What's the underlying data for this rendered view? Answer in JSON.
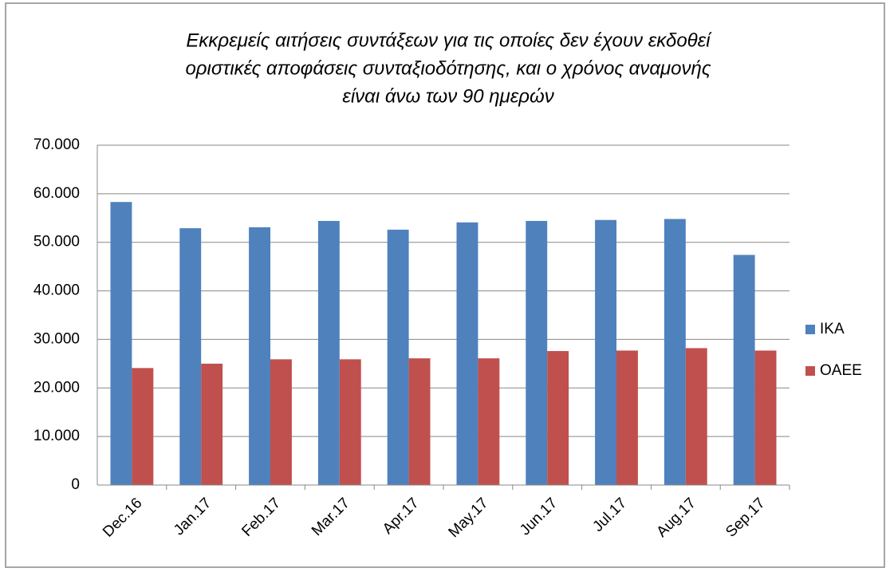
{
  "chart_data": {
    "type": "bar",
    "title": [
      "Εκκρεμείς αιτήσεις συντάξεων  για τις οποίες δεν έχουν εκδοθεί",
      "οριστικές αποφάσεις συνταξιοδότησης, και ο χρόνος αναμονής",
      "είναι άνω των 90 ημερών"
    ],
    "categories": [
      "Dec.16",
      "Jan.17",
      "Feb.17",
      "Mar.17",
      "Apr.17",
      "May.17",
      "Jun.17",
      "Jul.17",
      "Aug.17",
      "Sep.17"
    ],
    "series": [
      {
        "name": "IKA",
        "color": "#4f81bd",
        "values": [
          58300,
          52900,
          53100,
          54400,
          52600,
          54100,
          54400,
          54600,
          54800,
          47400
        ]
      },
      {
        "name": "OAEE",
        "color": "#c0504d",
        "values": [
          24100,
          25000,
          25900,
          25900,
          26100,
          26100,
          27600,
          27700,
          28200,
          27700
        ]
      }
    ],
    "ylim": [
      0,
      70000
    ],
    "yticks": [
      0,
      {
        "value": 10000,
        "label": "10.000"
      },
      {
        "value": 20000,
        "label": "20.000"
      },
      {
        "value": 30000,
        "label": "30.000"
      },
      {
        "value": 40000,
        "label": "40.000"
      },
      {
        "value": 50000,
        "label": "50.000"
      },
      {
        "value": 60000,
        "label": "60.000"
      },
      {
        "value": 70000,
        "label": "70.000"
      }
    ],
    "grid": true,
    "legend": "right"
  }
}
